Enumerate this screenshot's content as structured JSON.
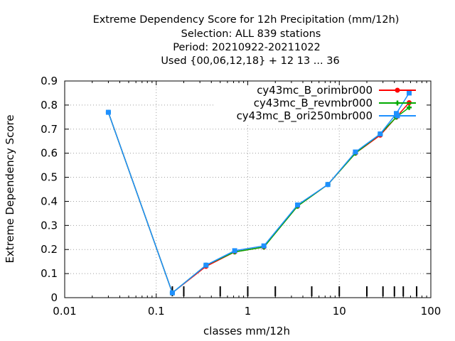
{
  "chart_data": {
    "type": "line",
    "title_lines": [
      "Extreme Dependency Score  for 12h Precipitation (mm/12h)",
      "Selection: ALL    839 stations",
      "Period: 20210922-20211022",
      "Used {00,06,12,18} + 12 13 ... 36"
    ],
    "xlabel": "classes mm/12h",
    "ylabel": "Extreme Dependency Score",
    "xscale": "log",
    "xlim": [
      0.01,
      100
    ],
    "ylim": [
      0,
      0.9
    ],
    "xticks": [
      0.01,
      0.1,
      1,
      10,
      100
    ],
    "xtick_labels": [
      "0.01",
      "0.1",
      "1",
      "10",
      "100"
    ],
    "yticks": [
      0,
      0.1,
      0.2,
      0.3,
      0.4,
      0.5,
      0.6,
      0.7,
      0.8,
      0.9
    ],
    "ytick_labels": [
      "0",
      "0.1",
      "0.2",
      "0.3",
      "0.4",
      "0.5",
      "0.6",
      "0.7",
      "0.8",
      "0.9"
    ],
    "class_markers": [
      0.15,
      0.2,
      0.5,
      1,
      2,
      5,
      10,
      20,
      30,
      40,
      50,
      70
    ],
    "legend_position": "top-right",
    "series": [
      {
        "name": "cy43mc_B_orimbr000",
        "color": "#ff0000",
        "marker": "circle",
        "x": [
          0.03,
          0.15,
          0.35,
          0.72,
          1.5,
          3.5,
          7.5,
          15,
          28,
          42,
          58
        ],
        "y": [
          0.77,
          0.02,
          0.13,
          0.19,
          0.21,
          0.38,
          0.47,
          0.6,
          0.675,
          0.75,
          0.81
        ]
      },
      {
        "name": "cy43mc_B_revmbr000",
        "color": "#00aa00",
        "marker": "cross",
        "x": [
          0.03,
          0.15,
          0.35,
          0.72,
          1.5,
          3.5,
          7.5,
          15,
          28,
          42,
          58
        ],
        "y": [
          0.77,
          0.02,
          0.135,
          0.19,
          0.21,
          0.38,
          0.47,
          0.6,
          0.68,
          0.75,
          0.79
        ]
      },
      {
        "name": "cy43mc_B_ori250mbr000",
        "color": "#1e90ff",
        "marker": "square",
        "x": [
          0.03,
          0.15,
          0.35,
          0.72,
          1.5,
          3.5,
          7.5,
          15,
          28,
          42,
          58
        ],
        "y": [
          0.77,
          0.02,
          0.135,
          0.195,
          0.215,
          0.385,
          0.47,
          0.605,
          0.68,
          0.765,
          0.85
        ]
      }
    ]
  }
}
